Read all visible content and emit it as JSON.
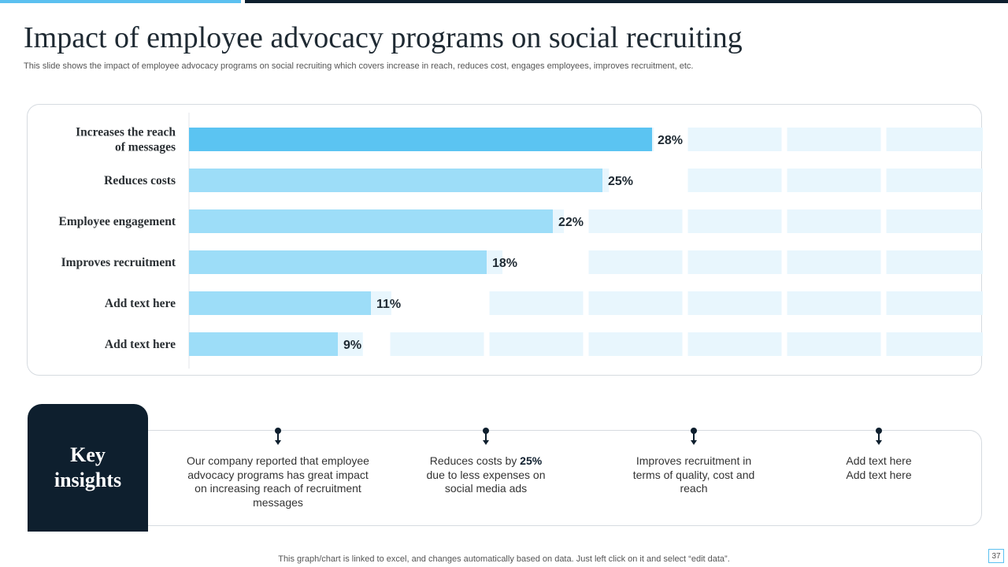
{
  "header": {
    "title": "Impact of employee advocacy programs on social recruiting",
    "subtitle": "This slide shows the impact of employee advocacy programs on social recruiting which covers increase in reach, reduces cost, engages employees, improves recruitment, etc."
  },
  "colors": {
    "accent": "#5bc0f0",
    "bar_primary": "#5bc4f2",
    "bar_secondary": "#9dddf8",
    "track": "#e8f6fd",
    "dark": "#0e1f2e"
  },
  "chart_data": {
    "type": "bar",
    "orientation": "horizontal",
    "categories": [
      "Increases the reach\nof messages",
      "Reduces costs",
      "Employee engagement",
      "Improves recruitment",
      "Add text here",
      "Add text here"
    ],
    "values": [
      28,
      25,
      22,
      18,
      11,
      9
    ],
    "value_labels": [
      "28%",
      "25%",
      "22%",
      "18%",
      "11%",
      "9%"
    ],
    "xlim": [
      0,
      48
    ],
    "track_segment": 6,
    "unit": "%",
    "title": "",
    "xlabel": "",
    "ylabel": ""
  },
  "insights": {
    "heading_line1": "Key",
    "heading_line2": "insights",
    "items": [
      {
        "text": "Our company reported that employee advocacy programs has great impact on increasing reach of recruitment messages"
      },
      {
        "pre": "Reduces costs by ",
        "bold": "25%",
        "post": " due to less expenses on social media ads"
      },
      {
        "text": "Improves recruitment in terms of quality, cost and reach"
      },
      {
        "text": "Add text here Add text here"
      }
    ]
  },
  "footer": {
    "note": "This graph/chart is linked to excel, and changes automatically based on data. Just left click on it and select “edit data”.",
    "page_number": "37"
  }
}
